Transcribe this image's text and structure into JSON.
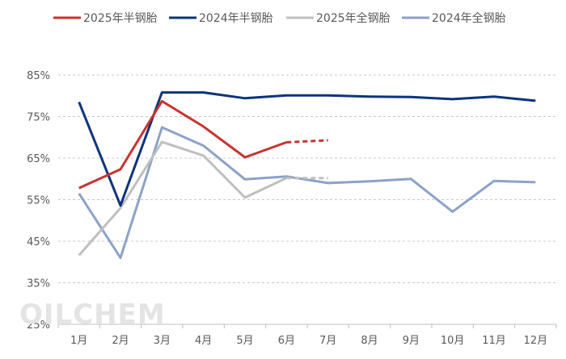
{
  "chart_data": {
    "type": "line",
    "categories": [
      "1月",
      "2月",
      "3月",
      "4月",
      "5月",
      "6月",
      "7月",
      "8月",
      "9月",
      "10月",
      "11月",
      "12月"
    ],
    "y_ticks": [
      "25%",
      "35%",
      "45%",
      "55%",
      "65%",
      "75%",
      "85%"
    ],
    "ylim": [
      25,
      85
    ],
    "grid": "horizontal-dashed",
    "legend_position": "top",
    "watermark": "OILCHEM",
    "series": [
      {
        "name": "2025年半钢胎",
        "color": "#c8332e",
        "values": [
          57.8,
          62.3,
          78.7,
          72.6,
          65.2,
          68.8,
          null,
          null,
          null,
          null,
          null,
          null
        ],
        "projected": [
          null,
          null,
          null,
          null,
          null,
          68.8,
          69.3,
          null,
          null,
          null,
          null,
          null
        ]
      },
      {
        "name": "2024年半钢胎",
        "color": "#0d347c",
        "values": [
          78.5,
          53.6,
          80.8,
          80.8,
          79.4,
          80.1,
          80.1,
          79.8,
          79.7,
          79.2,
          79.8,
          78.8
        ]
      },
      {
        "name": "2025年全钢胎",
        "color": "#bfbfbf",
        "values": [
          41.6,
          53.0,
          68.9,
          65.6,
          55.5,
          60.2,
          null,
          null,
          null,
          null,
          null,
          null
        ],
        "projected": [
          null,
          null,
          null,
          null,
          null,
          60.2,
          60.2,
          null,
          null,
          null,
          null,
          null
        ]
      },
      {
        "name": "2024年全钢胎",
        "color": "#8ca2c7",
        "values": [
          56.5,
          41.0,
          72.4,
          68.0,
          59.9,
          60.6,
          59.0,
          59.4,
          60.0,
          52.1,
          59.5,
          59.2
        ]
      }
    ]
  }
}
